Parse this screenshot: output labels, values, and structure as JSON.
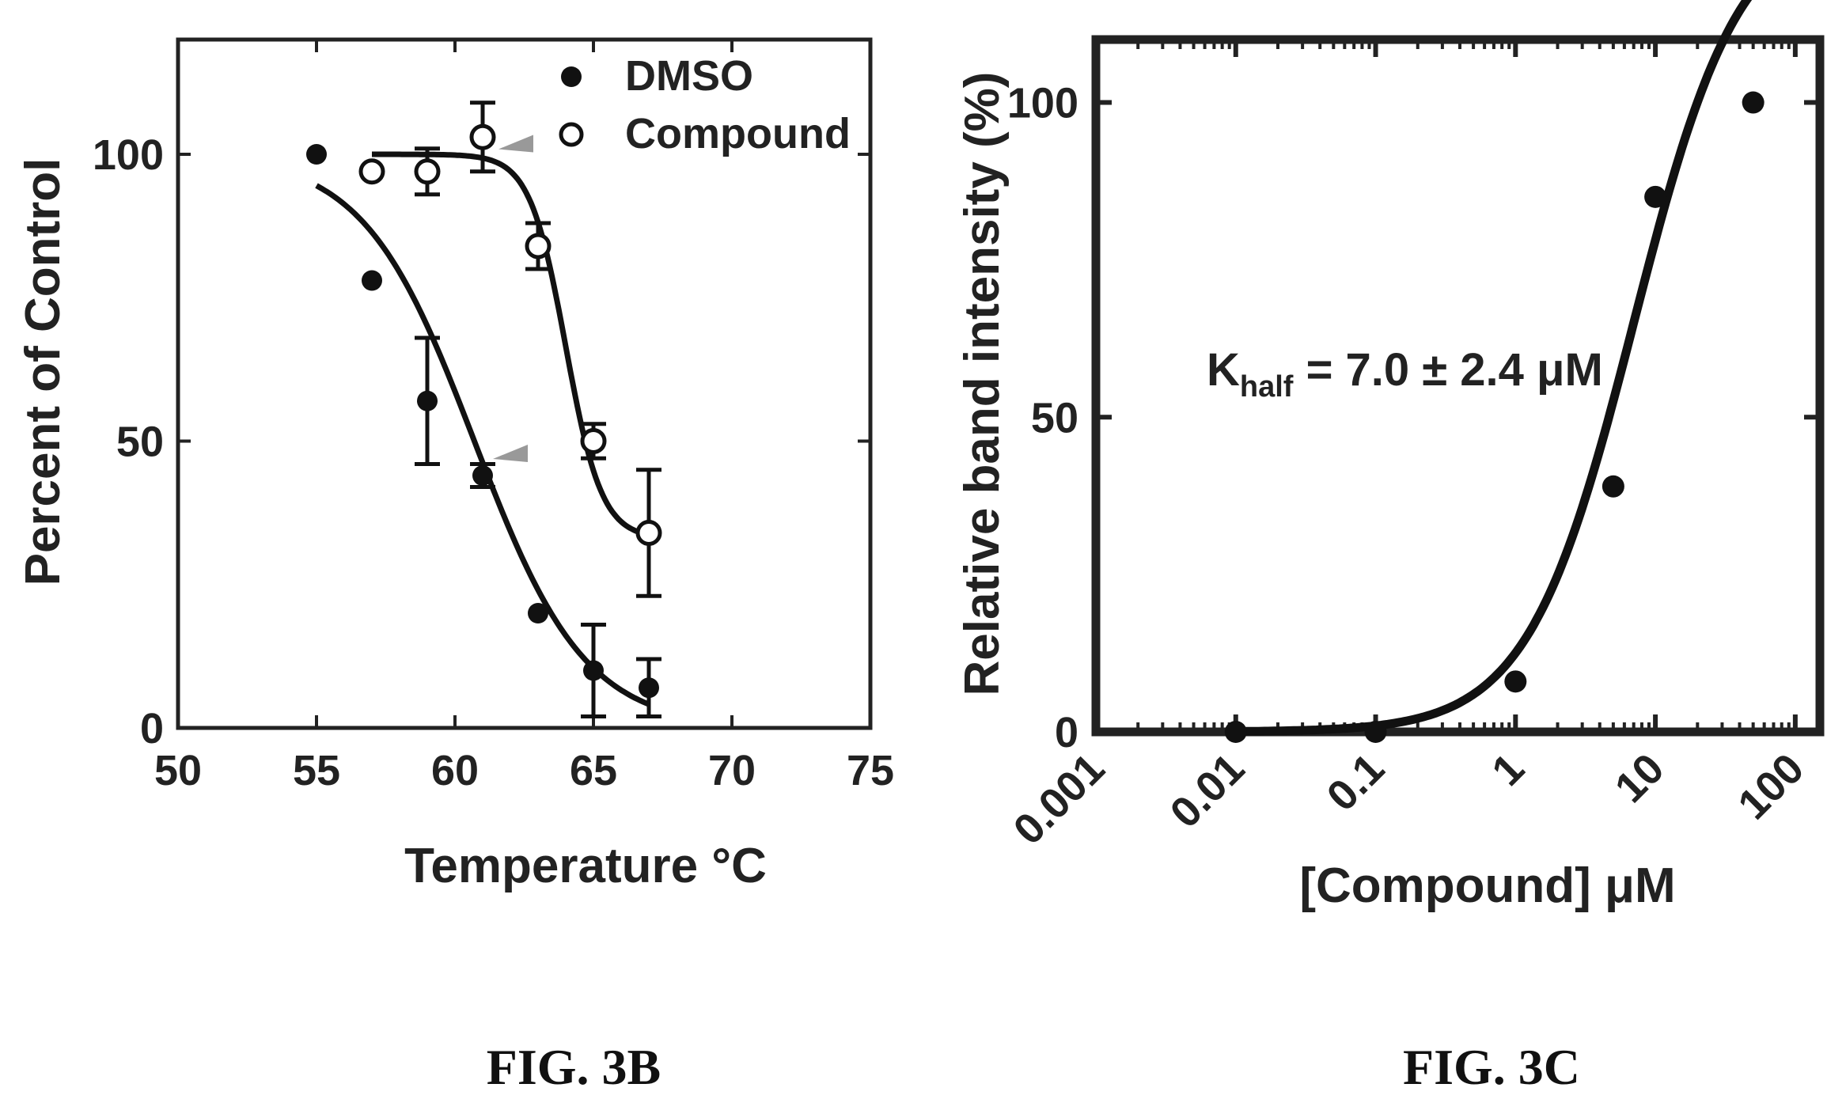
{
  "chart_data": [
    {
      "id": "fig3b",
      "type": "scatter",
      "caption": "FIG. 3B",
      "xlabel": "Temperature °C",
      "ylabel": "Percent of Control",
      "xlim": [
        50,
        75
      ],
      "ylim": [
        0,
        120
      ],
      "xticks": [
        50,
        55,
        60,
        65,
        70,
        75
      ],
      "yticks": [
        0,
        50,
        100
      ],
      "legend_position": "top-right",
      "series": [
        {
          "name": "DMSO",
          "marker": "filled-circle",
          "color": "#111111",
          "points": [
            {
              "x": 55,
              "y": 100,
              "err": 0
            },
            {
              "x": 57,
              "y": 78,
              "err": 0
            },
            {
              "x": 59,
              "y": 57,
              "err": 11
            },
            {
              "x": 61,
              "y": 44,
              "err": 2
            },
            {
              "x": 63,
              "y": 20,
              "err": 0
            },
            {
              "x": 65,
              "y": 10,
              "err": 8
            },
            {
              "x": 67,
              "y": 7,
              "err": 5
            }
          ],
          "fit": {
            "top": 100,
            "bottom": 0,
            "mid": 60.7,
            "slope": 2.0
          }
        },
        {
          "name": "Compound",
          "marker": "open-circle",
          "color": "#111111",
          "points": [
            {
              "x": 57,
              "y": 97,
              "err": 0
            },
            {
              "x": 59,
              "y": 97,
              "err": 4
            },
            {
              "x": 61,
              "y": 103,
              "err": 6
            },
            {
              "x": 63,
              "y": 84,
              "err": 4
            },
            {
              "x": 65,
              "y": 50,
              "err": 3
            },
            {
              "x": 67,
              "y": 34,
              "err": 11
            }
          ],
          "fit": {
            "top": 100,
            "bottom": 33,
            "mid": 64.0,
            "slope": 0.65
          }
        }
      ],
      "arrow_color": "#999999",
      "arrows": [
        {
          "x": 62.2,
          "y": 102
        },
        {
          "x": 62.0,
          "y": 48
        }
      ]
    },
    {
      "id": "fig3c",
      "type": "scatter",
      "caption": "FIG. 3C",
      "xlabel": "[Compound] μM",
      "ylabel": "Relative band intensity (%)",
      "xscale": "log",
      "xlim": [
        0.001,
        150
      ],
      "ylim": [
        0,
        110
      ],
      "xticks": [
        "0.001",
        "0.01",
        "0.1",
        "1",
        "10",
        "100"
      ],
      "yticks": [
        0,
        50,
        100
      ],
      "annotation": {
        "main": "K",
        "sub": "half",
        "rest": " = 7.0 ± 2.4 μM"
      },
      "series": [
        {
          "marker": "filled-circle",
          "color": "#111111",
          "points": [
            {
              "x": 0.01,
              "y": 0
            },
            {
              "x": 0.1,
              "y": 0
            },
            {
              "x": 1,
              "y": 8
            },
            {
              "x": 5,
              "y": 39
            },
            {
              "x": 10,
              "y": 85
            },
            {
              "x": 50,
              "y": 100
            }
          ],
          "fit": {
            "top": 130,
            "bottom": 0,
            "khalf": 7.0,
            "hill": 1.15,
            "xmin": 0.01,
            "xmax": 50
          }
        }
      ]
    }
  ]
}
